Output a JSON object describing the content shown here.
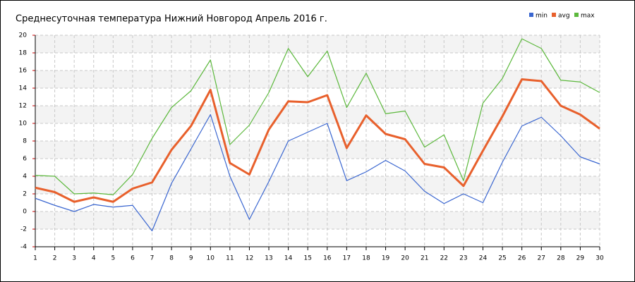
{
  "chart_data": {
    "type": "line",
    "title": "Среднесуточная температура Нижний Новгород  Апрель 2016 г.",
    "x": [
      1,
      2,
      3,
      4,
      5,
      6,
      7,
      8,
      9,
      10,
      11,
      12,
      13,
      14,
      15,
      16,
      17,
      18,
      19,
      20,
      21,
      22,
      23,
      24,
      25,
      26,
      27,
      28,
      29,
      30
    ],
    "xlim": [
      1,
      30
    ],
    "xticks": [
      1,
      2,
      3,
      4,
      5,
      6,
      7,
      8,
      9,
      10,
      11,
      12,
      13,
      14,
      15,
      16,
      17,
      18,
      19,
      20,
      21,
      22,
      23,
      24,
      25,
      26,
      27,
      28,
      29,
      30
    ],
    "ylim": [
      -4,
      20
    ],
    "yticks": [
      -4,
      -2,
      0,
      2,
      4,
      6,
      8,
      10,
      12,
      14,
      16,
      18,
      20
    ],
    "grid": true,
    "legend": "top-right",
    "series": [
      {
        "name": "min",
        "color": "#3a66d0",
        "values": [
          1.5,
          0.7,
          0.0,
          0.8,
          0.5,
          0.7,
          -2.2,
          3.2,
          7.1,
          11.0,
          4.0,
          -0.9,
          3.4,
          8.0,
          9.0,
          10.0,
          3.5,
          4.5,
          5.8,
          4.6,
          2.3,
          0.9,
          2.0,
          1.0,
          5.6,
          9.7,
          10.7,
          8.6,
          6.2,
          5.4
        ]
      },
      {
        "name": "avg",
        "color": "#e8602c",
        "values": [
          2.7,
          2.2,
          1.1,
          1.6,
          1.1,
          2.6,
          3.3,
          7.0,
          9.7,
          13.8,
          5.5,
          4.2,
          9.3,
          12.5,
          12.4,
          13.2,
          7.2,
          10.9,
          8.8,
          8.2,
          5.4,
          5.0,
          2.9,
          6.9,
          10.8,
          15.0,
          14.8,
          12.0,
          11.0,
          9.4
        ]
      },
      {
        "name": "max",
        "color": "#5cb83c",
        "values": [
          4.1,
          4.0,
          2.0,
          2.1,
          1.9,
          4.2,
          8.3,
          11.8,
          13.7,
          17.2,
          7.6,
          9.8,
          13.5,
          18.5,
          15.3,
          18.2,
          11.8,
          15.7,
          11.1,
          11.4,
          7.3,
          8.7,
          3.5,
          12.3,
          15.1,
          19.6,
          18.5,
          14.9,
          14.7,
          13.5
        ]
      }
    ]
  }
}
